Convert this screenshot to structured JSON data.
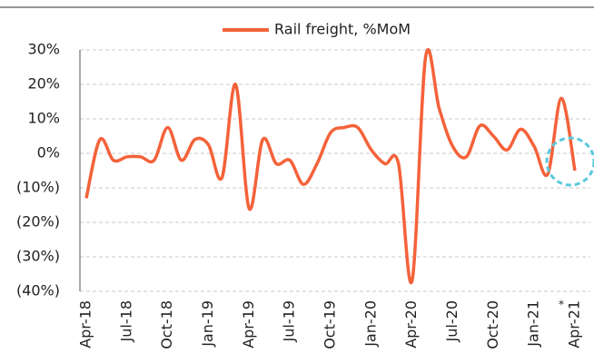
{
  "chart_data": {
    "type": "line",
    "categories": [
      "Apr-18",
      null,
      null,
      "Jul-18",
      null,
      null,
      "Oct-18",
      null,
      null,
      "Jan-19",
      null,
      null,
      "Apr-19",
      null,
      null,
      "Jul-19",
      null,
      null,
      "Oct-19",
      null,
      null,
      "Jan-20",
      null,
      null,
      "Apr-20",
      null,
      null,
      "Jul-20",
      null,
      null,
      "Oct-20",
      null,
      null,
      "Jan-21",
      null,
      null,
      "Apr-21"
    ],
    "series": [
      {
        "name": "Rail freight, %MoM",
        "color": "#f4623a",
        "values": [
          -13,
          4,
          -2,
          -1,
          -1,
          -2,
          7.5,
          -2,
          4,
          2.5,
          -7,
          20,
          -16,
          4,
          -3,
          -2,
          -9,
          -3,
          6,
          7.5,
          7.5,
          1,
          -3,
          -3,
          -37,
          28,
          13,
          2,
          -1,
          8,
          5,
          1,
          7,
          2,
          -6,
          16,
          -5
        ]
      }
    ],
    "ylim": [
      -40,
      30
    ],
    "yticks": [
      {
        "value": -40,
        "label": "(40%)"
      },
      {
        "value": -30,
        "label": "(30%)"
      },
      {
        "value": -20,
        "label": "(20%)"
      },
      {
        "value": -10,
        "label": "(10%)"
      },
      {
        "value": 0,
        "label": "0%"
      },
      {
        "value": 10,
        "label": "10%"
      },
      {
        "value": 20,
        "label": "20%"
      },
      {
        "value": 30,
        "label": "30%"
      }
    ],
    "grid": true,
    "legend": "top",
    "annotations": [
      "*"
    ]
  }
}
